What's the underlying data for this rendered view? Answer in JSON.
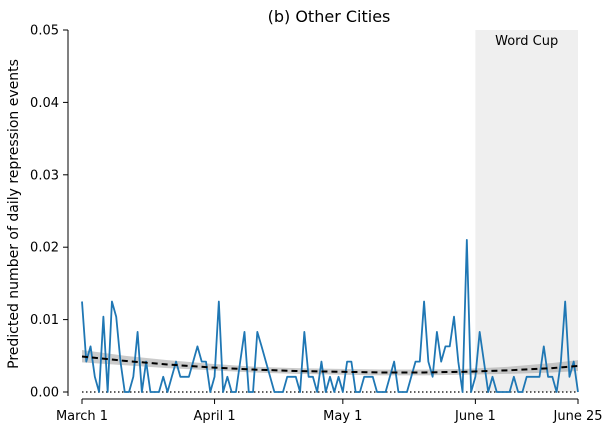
{
  "chart_data": {
    "type": "line",
    "title": "(b) Other Cities",
    "xlabel": "",
    "ylabel": "Predicted number of daily repression events",
    "x_domain": [
      "March 1",
      "June 25"
    ],
    "xtick_labels": [
      "March 1",
      "April 1",
      "May 1",
      "June 1",
      "June 25"
    ],
    "xtick_days": [
      0,
      31,
      61,
      92,
      116
    ],
    "ylim": [
      0,
      0.05
    ],
    "yticks": [
      0.0,
      0.01,
      0.02,
      0.03,
      0.04,
      0.05
    ],
    "ytick_labels": [
      "0.00",
      "0.01",
      "0.02",
      "0.03",
      "0.04",
      "0.05"
    ],
    "grid": false,
    "shaded_region": {
      "label": "Word Cup",
      "start_day": 92,
      "end_day": 116,
      "color": "#efefef"
    },
    "series": [
      {
        "style": "solid",
        "color": "#1f77b4",
        "values": [
          0.0125,
          0.0042,
          0.0063,
          0.0021,
          0.0,
          0.0104,
          0.0,
          0.0125,
          0.0104,
          0.0042,
          0.0,
          0.0,
          0.0021,
          0.0083,
          0.0,
          0.0042,
          0.0,
          0.0,
          0.0,
          0.0021,
          0.0,
          0.0021,
          0.0042,
          0.0021,
          0.0021,
          0.0021,
          0.0042,
          0.0063,
          0.0042,
          0.0042,
          0.0,
          0.0021,
          0.0125,
          0.0,
          0.0021,
          0.0,
          0.0,
          0.0042,
          0.0083,
          0.0,
          0.0,
          0.0083,
          0.0063,
          0.0042,
          0.0021,
          0.0,
          0.0,
          0.0,
          0.0021,
          0.0021,
          0.0021,
          0.0,
          0.0083,
          0.0021,
          0.0021,
          0.0,
          0.0042,
          0.0,
          0.0021,
          0.0,
          0.0021,
          0.0,
          0.0042,
          0.0042,
          0.0,
          0.0,
          0.0021,
          0.0021,
          0.0021,
          0.0,
          0.0,
          0.0,
          0.0021,
          0.0042,
          0.0,
          0.0,
          0.0,
          0.0021,
          0.0042,
          0.0042,
          0.0125,
          0.0042,
          0.0021,
          0.0083,
          0.0042,
          0.0063,
          0.0063,
          0.0104,
          0.0042,
          0.0,
          0.021,
          0.0,
          0.0021,
          0.0083,
          0.0042,
          0.0,
          0.0021,
          0.0,
          0.0,
          0.0,
          0.0,
          0.0021,
          0.0,
          0.0,
          0.0021,
          0.0021,
          0.0021,
          0.0021,
          0.0063,
          0.0021,
          0.0021,
          0.0,
          0.0042,
          0.0125,
          0.0021,
          0.0042,
          0.0
        ]
      },
      {
        "style": "dashed",
        "color": "#000000",
        "x": [
          0,
          10,
          20,
          30,
          40,
          50,
          60,
          70,
          80,
          90,
          100,
          110,
          116
        ],
        "values": [
          0.0049,
          0.0043,
          0.0038,
          0.0034,
          0.0031,
          0.0029,
          0.0028,
          0.0027,
          0.0027,
          0.0028,
          0.003,
          0.0033,
          0.0036
        ],
        "band_lower": [
          0.0041,
          0.0037,
          0.0033,
          0.003,
          0.0027,
          0.0025,
          0.0024,
          0.0023,
          0.0023,
          0.0024,
          0.0025,
          0.0027,
          0.0029
        ],
        "band_upper": [
          0.0058,
          0.005,
          0.0044,
          0.0039,
          0.0035,
          0.0033,
          0.0032,
          0.0031,
          0.0031,
          0.0032,
          0.0035,
          0.004,
          0.0044
        ],
        "band_color": "#a9a9a9"
      },
      {
        "style": "dotted",
        "color": "#000000",
        "values": [
          0,
          0
        ]
      }
    ]
  }
}
